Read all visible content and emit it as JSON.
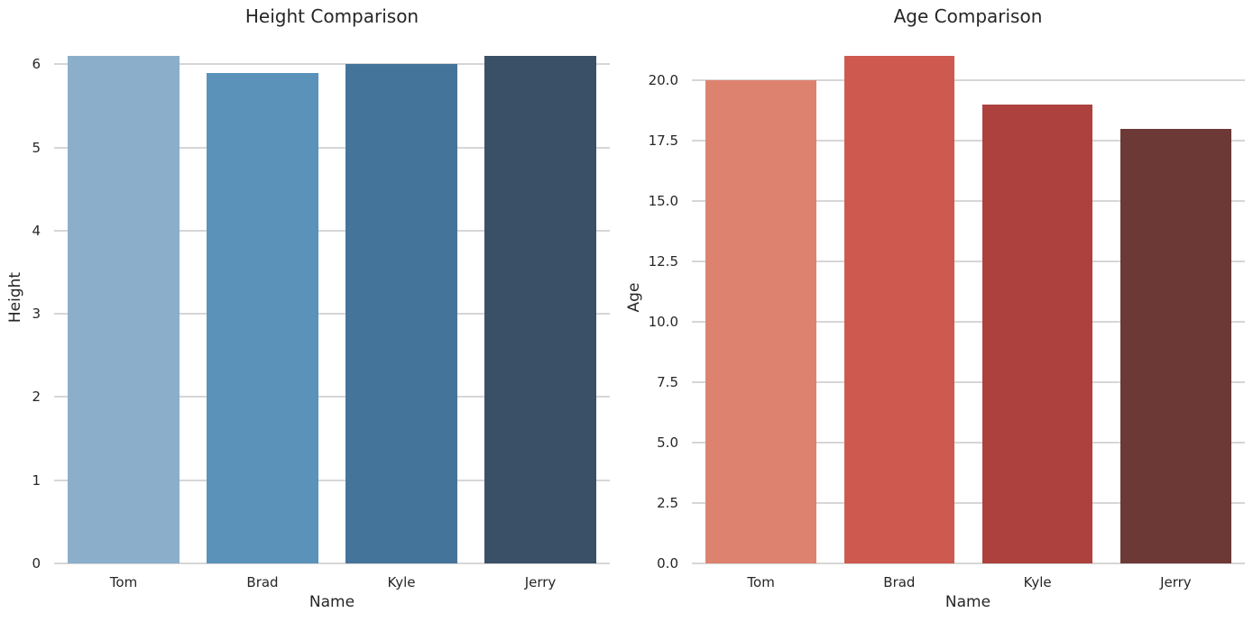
{
  "styles": {
    "background": "#FFFFFF",
    "text_color": "#262626",
    "grid_color": "#D6D6D6"
  },
  "chart_data": [
    {
      "type": "bar",
      "title": "Height Comparison",
      "xlabel": "Name",
      "ylabel": "Height",
      "categories": [
        "Tom",
        "Brad",
        "Kyle",
        "Jerry"
      ],
      "values": [
        6.1,
        5.9,
        6.0,
        6.1
      ],
      "ylim": [
        0,
        6.405
      ],
      "yticks": [
        0,
        1,
        2,
        3,
        4,
        5,
        6
      ],
      "ytick_labels": [
        "0",
        "1",
        "2",
        "3",
        "4",
        "5",
        "6"
      ],
      "bar_colors": [
        "#8BAFCB",
        "#5B92BA",
        "#45749A",
        "#3A5066"
      ],
      "grid": true,
      "legend_position": "none"
    },
    {
      "type": "bar",
      "title": "Age Comparison",
      "xlabel": "Name",
      "ylabel": "Age",
      "categories": [
        "Tom",
        "Brad",
        "Kyle",
        "Jerry"
      ],
      "values": [
        20,
        21,
        19,
        18
      ],
      "ylim": [
        0,
        22.05
      ],
      "yticks": [
        0,
        2.5,
        5,
        7.5,
        10,
        12.5,
        15,
        17.5,
        20
      ],
      "ytick_labels": [
        "0.0",
        "2.5",
        "5.0",
        "7.5",
        "10.0",
        "12.5",
        "15.0",
        "17.5",
        "20.0"
      ],
      "bar_colors": [
        "#DE8270",
        "#CD594F",
        "#AC413E",
        "#6D3936"
      ],
      "grid": true,
      "legend_position": "none"
    }
  ]
}
